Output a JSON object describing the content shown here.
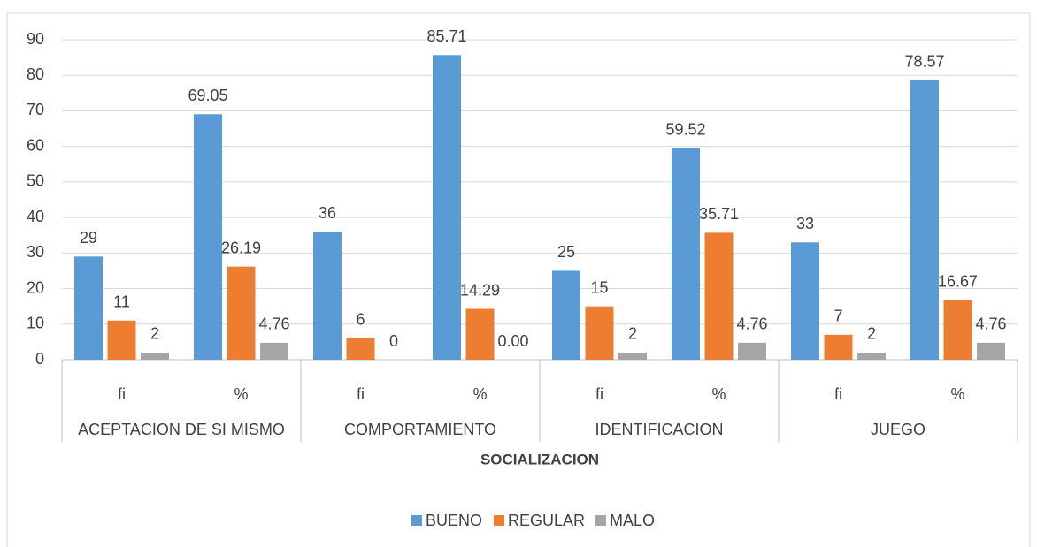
{
  "chart_data": {
    "type": "bar",
    "categories": [
      "fi",
      "%",
      "fi",
      "%",
      "fi",
      "%",
      "fi",
      "%"
    ],
    "category_groups": [
      "ACEPTACION DE SI MISMO",
      "COMPORTAMIENTO",
      "IDENTIFICACION",
      "JUEGO"
    ],
    "xlabel": "SOCIALIZACION",
    "series": [
      {
        "name": "BUENO",
        "color": "#5b9bd5",
        "values": [
          29,
          69.05,
          36,
          85.71,
          25,
          59.52,
          33,
          78.57
        ]
      },
      {
        "name": "REGULAR",
        "color": "#ed7d31",
        "values": [
          11,
          26.19,
          6,
          14.29,
          15,
          35.71,
          7,
          16.67
        ]
      },
      {
        "name": "MALO",
        "color": "#a5a5a5",
        "values": [
          2,
          4.76,
          0,
          0.0,
          2,
          4.76,
          2,
          4.76
        ],
        "value_labels": [
          "2",
          "4.76",
          "0",
          "0.00",
          "2",
          "4.76",
          "2",
          "4.76"
        ]
      }
    ],
    "ylim": [
      0,
      90
    ],
    "yticks": [
      0,
      10,
      20,
      30,
      40,
      50,
      60,
      70,
      80,
      90
    ],
    "grid": true,
    "legend": "bottom"
  }
}
